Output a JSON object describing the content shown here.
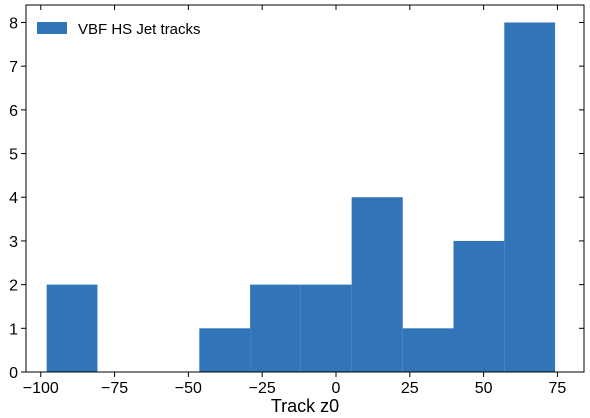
{
  "chart_data": {
    "type": "bar",
    "subtype": "histogram",
    "title": "",
    "xlabel": "Track z0",
    "ylabel": "",
    "xlim": [
      -105,
      84
    ],
    "ylim": [
      0,
      8.4
    ],
    "xticks": [
      -100,
      -75,
      -50,
      -25,
      0,
      25,
      50,
      75
    ],
    "xtick_labels": [
      "−100",
      "−75",
      "−50",
      "−25",
      "0",
      "25",
      "50",
      "75"
    ],
    "yticks": [
      0,
      1,
      2,
      3,
      4,
      5,
      6,
      7,
      8
    ],
    "ytick_labels": [
      "0",
      "1",
      "2",
      "3",
      "4",
      "5",
      "6",
      "7",
      "8"
    ],
    "grid": false,
    "legend": {
      "position": "top-left"
    },
    "series": [
      {
        "name": "VBF HS Jet tracks",
        "color": "#3274b8",
        "bins": [
          {
            "x0": -98.0,
            "x1": -80.8,
            "count": 2
          },
          {
            "x0": -80.8,
            "x1": -63.6,
            "count": 0
          },
          {
            "x0": -63.6,
            "x1": -46.3,
            "count": 0
          },
          {
            "x0": -46.3,
            "x1": -29.1,
            "count": 1
          },
          {
            "x0": -29.1,
            "x1": -11.9,
            "count": 2
          },
          {
            "x0": -11.9,
            "x1": 5.3,
            "count": 2
          },
          {
            "x0": 5.3,
            "x1": 22.6,
            "count": 4
          },
          {
            "x0": 22.6,
            "x1": 39.8,
            "count": 1
          },
          {
            "x0": 39.8,
            "x1": 57.0,
            "count": 3
          },
          {
            "x0": 57.0,
            "x1": 74.2,
            "count": 8
          }
        ]
      }
    ]
  }
}
